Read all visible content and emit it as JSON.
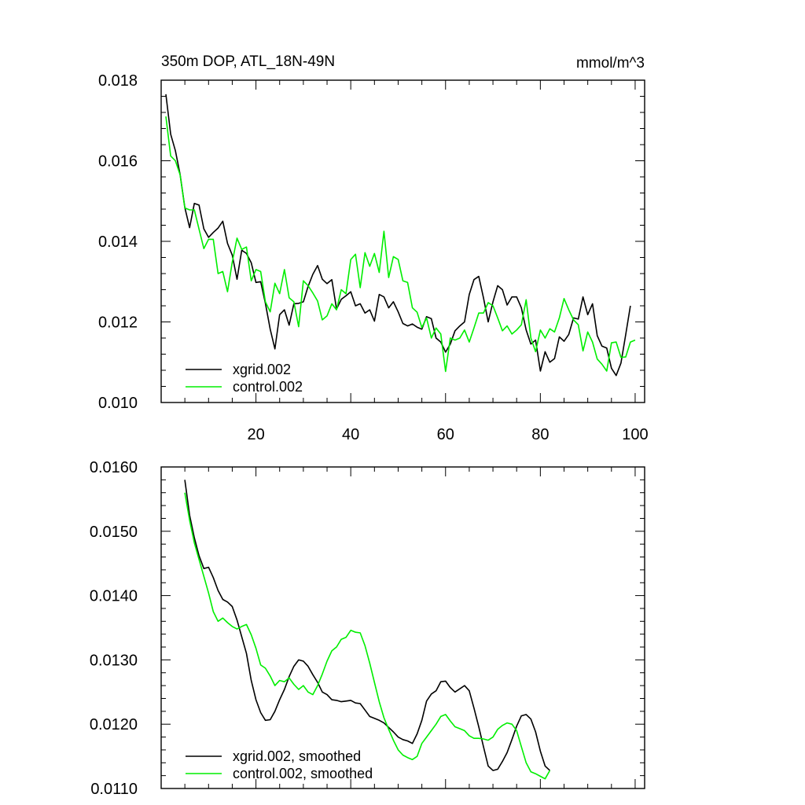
{
  "chart_data": [
    {
      "type": "line",
      "title_left": "350m DOP, ATL_18N-49N",
      "title_right": "mmol/m^3",
      "xlim": [
        0,
        102
      ],
      "ylim": [
        0.01,
        0.018
      ],
      "xticks": [
        20,
        40,
        60,
        80,
        100
      ],
      "xtick_labels": [
        "20",
        "40",
        "60",
        "80",
        "100"
      ],
      "yticks": [
        0.01,
        0.012,
        0.014,
        0.016,
        0.018
      ],
      "ytick_labels": [
        "0.010",
        "0.012",
        "0.014",
        "0.016",
        "0.018"
      ],
      "legend_position": "bottom-left",
      "series": [
        {
          "name": "xgrid.002",
          "color": "#000000",
          "x_start": 1,
          "values": [
            0.01765,
            0.01666,
            0.01625,
            0.01566,
            0.01484,
            0.01434,
            0.01494,
            0.0149,
            0.01431,
            0.0141,
            0.01422,
            0.01433,
            0.0145,
            0.01395,
            0.01366,
            0.01306,
            0.01378,
            0.0137,
            0.01347,
            0.01298,
            0.013,
            0.01246,
            0.01182,
            0.01133,
            0.01218,
            0.0123,
            0.01192,
            0.01245,
            0.01246,
            0.0125,
            0.01288,
            0.01318,
            0.0134,
            0.01306,
            0.01295,
            0.01305,
            0.01232,
            0.01256,
            0.01265,
            0.01275,
            0.0124,
            0.01245,
            0.01222,
            0.0123,
            0.01202,
            0.01268,
            0.01262,
            0.01235,
            0.0125,
            0.01225,
            0.01196,
            0.0119,
            0.01195,
            0.01187,
            0.01182,
            0.01213,
            0.01208,
            0.0116,
            0.0115,
            0.01125,
            0.01145,
            0.01178,
            0.0119,
            0.012,
            0.01268,
            0.01305,
            0.01313,
            0.0126,
            0.012,
            0.0125,
            0.0129,
            0.0128,
            0.01242,
            0.01262,
            0.01262,
            0.01235,
            0.0118,
            0.01145,
            0.01155,
            0.01078,
            0.01126,
            0.011,
            0.01109,
            0.01163,
            0.01152,
            0.01169,
            0.0121,
            0.01207,
            0.01262,
            0.01218,
            0.01245,
            0.01166,
            0.0114,
            0.01135,
            0.01085,
            0.01067,
            0.01098,
            0.01168,
            0.0124
          ]
        },
        {
          "name": "control.002",
          "color": "#00ee00",
          "x_start": 1,
          "values": [
            0.0171,
            0.01612,
            0.016,
            0.01565,
            0.01483,
            0.01478,
            0.01478,
            0.0143,
            0.01382,
            0.01405,
            0.01405,
            0.0132,
            0.01325,
            0.01275,
            0.01348,
            0.01408,
            0.0138,
            0.01386,
            0.01302,
            0.0133,
            0.01325,
            0.0125,
            0.01225,
            0.01296,
            0.0127,
            0.0133,
            0.0126,
            0.0125,
            0.01188,
            0.01302,
            0.0129,
            0.01272,
            0.01252,
            0.01205,
            0.01215,
            0.01245,
            0.0123,
            0.0128,
            0.0127,
            0.01355,
            0.01368,
            0.01285,
            0.01372,
            0.01338,
            0.0137,
            0.01323,
            0.01425,
            0.0131,
            0.01362,
            0.01355,
            0.01302,
            0.01298,
            0.01235,
            0.01224,
            0.01186,
            0.0121,
            0.0116,
            0.01185,
            0.0117,
            0.01077,
            0.0116,
            0.01155,
            0.0116,
            0.0118,
            0.0115,
            0.01185,
            0.01222,
            0.01222,
            0.01248,
            0.0124,
            0.0121,
            0.01178,
            0.0119,
            0.0117,
            0.0118,
            0.01193,
            0.01255,
            0.0116,
            0.01126,
            0.0118,
            0.0116,
            0.01183,
            0.01175,
            0.0121,
            0.01258,
            0.0123,
            0.01205,
            0.01193,
            0.01128,
            0.01175,
            0.0115,
            0.01108,
            0.01095,
            0.01078,
            0.01148,
            0.0115,
            0.01112,
            0.01113,
            0.0115,
            0.01155
          ]
        }
      ]
    },
    {
      "type": "line",
      "xlim": [
        0,
        102
      ],
      "ylim": [
        0.011,
        0.016
      ],
      "xticks": [
        20,
        40,
        60,
        80,
        100
      ],
      "yticks": [
        0.011,
        0.012,
        0.013,
        0.014,
        0.015,
        0.016
      ],
      "ytick_labels": [
        "0.0110",
        "0.0120",
        "0.0130",
        "0.0140",
        "0.0150",
        "0.0160"
      ],
      "legend_position": "bottom-left",
      "series": [
        {
          "name": "xgrid.002, smoothed",
          "color": "#000000",
          "x_start": 5,
          "values": [
            0.0158,
            0.01525,
            0.0149,
            0.01462,
            0.01442,
            0.01444,
            0.01428,
            0.01408,
            0.01394,
            0.0139,
            0.01383,
            0.01362,
            0.01336,
            0.0131,
            0.01268,
            0.01238,
            0.01218,
            0.01206,
            0.01207,
            0.0122,
            0.01238,
            0.01254,
            0.01274,
            0.0129,
            0.013,
            0.01298,
            0.0129,
            0.01277,
            0.01265,
            0.0125,
            0.01246,
            0.01238,
            0.01237,
            0.01235,
            0.01236,
            0.01237,
            0.01233,
            0.01232,
            0.01222,
            0.01212,
            0.01209,
            0.01206,
            0.01202,
            0.01195,
            0.01188,
            0.0118,
            0.01176,
            0.01174,
            0.0117,
            0.01185,
            0.01206,
            0.01236,
            0.01247,
            0.01252,
            0.01266,
            0.01267,
            0.01257,
            0.0125,
            0.01255,
            0.0126,
            0.01252,
            0.01225,
            0.01196,
            0.01165,
            0.01135,
            0.01128,
            0.0113,
            0.01142,
            0.01156,
            0.01176,
            0.01197,
            0.01213,
            0.01215,
            0.01208,
            0.01188,
            0.01158,
            0.01135,
            0.01128
          ]
        },
        {
          "name": "control.002, smoothed",
          "color": "#00ee00",
          "x_start": 5,
          "values": [
            0.0156,
            0.01517,
            0.01482,
            0.01456,
            0.0143,
            0.01404,
            0.01375,
            0.0136,
            0.01365,
            0.01358,
            0.01352,
            0.01348,
            0.01352,
            0.01355,
            0.01339,
            0.01318,
            0.01292,
            0.01287,
            0.01275,
            0.0126,
            0.01268,
            0.01266,
            0.01272,
            0.01262,
            0.01254,
            0.0126,
            0.0125,
            0.01246,
            0.0126,
            0.01278,
            0.01298,
            0.01314,
            0.0132,
            0.01332,
            0.01335,
            0.01346,
            0.01343,
            0.01342,
            0.01322,
            0.01295,
            0.01265,
            0.01235,
            0.0121,
            0.01192,
            0.01175,
            0.0116,
            0.01152,
            0.01148,
            0.01145,
            0.0115,
            0.0117,
            0.0118,
            0.0119,
            0.012,
            0.01212,
            0.01215,
            0.01205,
            0.01196,
            0.01193,
            0.0119,
            0.01182,
            0.01178,
            0.01178,
            0.01177,
            0.01175,
            0.0118,
            0.01192,
            0.01198,
            0.01202,
            0.012,
            0.0119,
            0.01165,
            0.0114,
            0.01126,
            0.01123,
            0.01119,
            0.01115,
            0.01128
          ]
        }
      ]
    }
  ]
}
